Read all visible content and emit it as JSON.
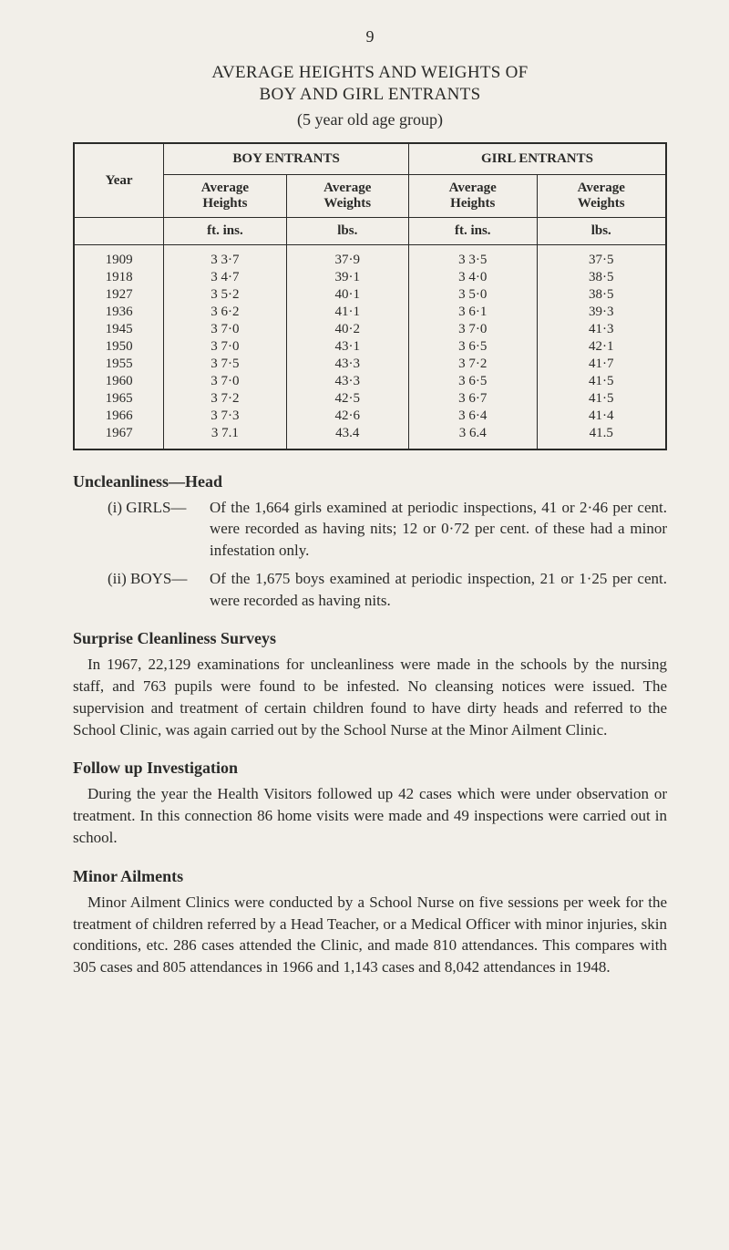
{
  "page_number": "9",
  "title_line_1": "AVERAGE HEIGHTS AND WEIGHTS OF",
  "title_line_2": "BOY AND GIRL ENTRANTS",
  "subtitle": "(5 year old age group)",
  "table": {
    "type": "table",
    "background_color": "#f2efe9",
    "border_color": "#2a2a28",
    "outer_border_width": 2,
    "inner_border_width": 1,
    "font_size_pt": 11,
    "col_year": "Year",
    "group_boys": "BOY ENTRANTS",
    "group_girls": "GIRL ENTRANTS",
    "h_avg_heights": "Average\nHeights",
    "h_avg_weights": "Average\nWeights",
    "unit_ft_ins": "ft. ins.",
    "unit_lbs": "lbs.",
    "column_alignment": [
      "center",
      "center",
      "center",
      "center",
      "center"
    ],
    "rows": [
      {
        "year": "1909",
        "b_h": "3  3·7",
        "b_w": "37·9",
        "g_h": "3  3·5",
        "g_w": "37·5"
      },
      {
        "year": "1918",
        "b_h": "3  4·7",
        "b_w": "39·1",
        "g_h": "3  4·0",
        "g_w": "38·5"
      },
      {
        "year": "1927",
        "b_h": "3  5·2",
        "b_w": "40·1",
        "g_h": "3  5·0",
        "g_w": "38·5"
      },
      {
        "year": "1936",
        "b_h": "3  6·2",
        "b_w": "41·1",
        "g_h": "3  6·1",
        "g_w": "39·3"
      },
      {
        "year": "1945",
        "b_h": "3  7·0",
        "b_w": "40·2",
        "g_h": "3  7·0",
        "g_w": "41·3"
      },
      {
        "year": "1950",
        "b_h": "3  7·0",
        "b_w": "43·1",
        "g_h": "3  6·5",
        "g_w": "42·1"
      },
      {
        "year": "1955",
        "b_h": "3  7·5",
        "b_w": "43·3",
        "g_h": "3  7·2",
        "g_w": "41·7"
      },
      {
        "year": "1960",
        "b_h": "3  7·0",
        "b_w": "43·3",
        "g_h": "3  6·5",
        "g_w": "41·5"
      },
      {
        "year": "1965",
        "b_h": "3  7·2",
        "b_w": "42·5",
        "g_h": "3  6·7",
        "g_w": "41·5"
      },
      {
        "year": "1966",
        "b_h": "3  7·3",
        "b_w": "42·6",
        "g_h": "3  6·4",
        "g_w": "41·4"
      },
      {
        "year": "1967",
        "b_h": "3  7.1",
        "b_w": "43.4",
        "g_h": "3  6.4",
        "g_w": "41.5"
      }
    ]
  },
  "uncleanliness": {
    "heading": "Uncleanliness—Head",
    "girls_label": "(i) GIRLS—",
    "girls_text": "Of the 1,664 girls examined at periodic inspections, 41 or 2·46 per cent. were recorded as having nits; 12 or 0·72 per cent. of these had a minor infesta­tion only.",
    "boys_label": "(ii) BOYS—",
    "boys_text": "Of the 1,675 boys examined at periodic inspection, 21 or 1·25 per cent. were recorded as having nits."
  },
  "surveys": {
    "heading": "Surprise Cleanliness Surveys",
    "text": "In 1967, 22,129 examinations for uncleanliness were made in the schools by the nursing staff, and 763 pupils were found to be infested. No cleansing notices were issued. The supervision and treatment of certain children found to have dirty heads and referred to the School Clinic, was again carried out by the School Nurse at the Minor Ailment Clinic."
  },
  "followup": {
    "heading": "Follow up Investigation",
    "text": "During the year the Health Visitors followed up 42 cases which were under observation or treatment. In this connection 86 home visits were made and 49 inspections were carried out in school."
  },
  "minor": {
    "heading": "Minor Ailments",
    "text": "Minor Ailment Clinics were conducted by a School Nurse on five sessions per week for the treatment of children referred by a Head Teacher, or a Medical Officer with minor injuries, skin conditions, etc. 286 cases attended the Clinic, and made 810 attendances. This compares with 305 cases and 805 attendances in 1966 and 1,143 cases and 8,042 attendances in 1948."
  }
}
